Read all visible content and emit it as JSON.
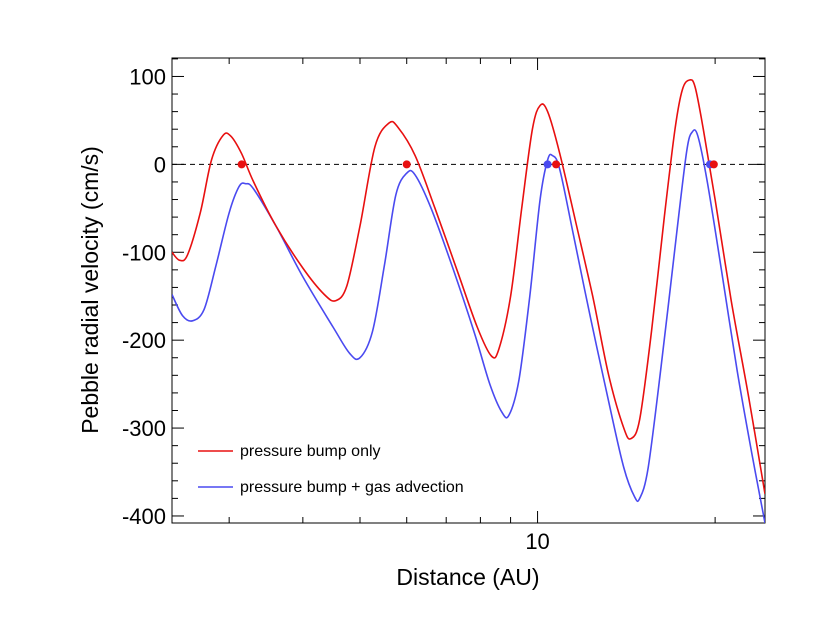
{
  "chart_data": {
    "type": "line",
    "title": "",
    "xlabel": "Distance (AU)",
    "ylabel": "Pebble radial velocity (cm/s)",
    "xscale": "log",
    "xlim": [
      2.4,
      24.3
    ],
    "ylim": [
      -408,
      121
    ],
    "x_tick_labels": [
      {
        "value": 10,
        "label": "10"
      }
    ],
    "x_minor_ticks": [
      3,
      4,
      5,
      6,
      7,
      8,
      9,
      20
    ],
    "y_ticks": [
      -400,
      -300,
      -200,
      -100,
      0,
      100
    ],
    "y_tick_labels": [
      "-400",
      "-300",
      "-200",
      "-100",
      "0",
      "100"
    ],
    "grid": false,
    "zero_line": {
      "y": 0,
      "style": "dashed",
      "color": "#000000"
    },
    "legend": {
      "position": "bottom-left"
    },
    "series": [
      {
        "name": "pressure bump only",
        "color": "#e81010",
        "points": [
          [
            2.4,
            -100
          ],
          [
            2.47,
            -109
          ],
          [
            2.55,
            -103
          ],
          [
            2.68,
            -55
          ],
          [
            2.8,
            5
          ],
          [
            2.93,
            33
          ],
          [
            3.02,
            32
          ],
          [
            3.15,
            12
          ],
          [
            3.3,
            -20
          ],
          [
            3.6,
            -70
          ],
          [
            4.0,
            -118
          ],
          [
            4.35,
            -148
          ],
          [
            4.55,
            -155
          ],
          [
            4.75,
            -138
          ],
          [
            5.0,
            -70
          ],
          [
            5.3,
            20
          ],
          [
            5.6,
            47
          ],
          [
            5.8,
            42
          ],
          [
            6.2,
            10
          ],
          [
            6.7,
            -50
          ],
          [
            7.3,
            -120
          ],
          [
            7.9,
            -185
          ],
          [
            8.35,
            -218
          ],
          [
            8.6,
            -210
          ],
          [
            9.0,
            -150
          ],
          [
            9.4,
            -50
          ],
          [
            9.8,
            40
          ],
          [
            10.1,
            67
          ],
          [
            10.4,
            60
          ],
          [
            10.9,
            13
          ],
          [
            11.6,
            -65
          ],
          [
            12.4,
            -150
          ],
          [
            13.2,
            -240
          ],
          [
            14.0,
            -300
          ],
          [
            14.4,
            -312
          ],
          [
            14.9,
            -290
          ],
          [
            15.6,
            -190
          ],
          [
            16.4,
            -60
          ],
          [
            17.1,
            40
          ],
          [
            17.6,
            85
          ],
          [
            18.1,
            96
          ],
          [
            18.5,
            88
          ],
          [
            19.1,
            40
          ],
          [
            20.0,
            -40
          ],
          [
            21.3,
            -155
          ],
          [
            22.8,
            -265
          ],
          [
            24.3,
            -375
          ]
        ],
        "markers": [
          [
            3.15,
            0
          ],
          [
            6.0,
            0
          ],
          [
            10.75,
            0
          ],
          [
            19.9,
            0
          ]
        ]
      },
      {
        "name": "pressure bump + gas advection",
        "color": "#4a4af0",
        "points": [
          [
            2.4,
            -148
          ],
          [
            2.5,
            -172
          ],
          [
            2.6,
            -178
          ],
          [
            2.72,
            -165
          ],
          [
            2.85,
            -115
          ],
          [
            3.0,
            -55
          ],
          [
            3.12,
            -25
          ],
          [
            3.2,
            -22
          ],
          [
            3.3,
            -28
          ],
          [
            3.6,
            -70
          ],
          [
            4.0,
            -128
          ],
          [
            4.5,
            -185
          ],
          [
            4.8,
            -215
          ],
          [
            5.0,
            -220
          ],
          [
            5.25,
            -190
          ],
          [
            5.5,
            -115
          ],
          [
            5.75,
            -35
          ],
          [
            6.0,
            -10
          ],
          [
            6.2,
            -12
          ],
          [
            6.6,
            -50
          ],
          [
            7.2,
            -120
          ],
          [
            7.8,
            -190
          ],
          [
            8.3,
            -250
          ],
          [
            8.7,
            -282
          ],
          [
            8.95,
            -285
          ],
          [
            9.3,
            -245
          ],
          [
            9.7,
            -150
          ],
          [
            10.1,
            -40
          ],
          [
            10.4,
            5
          ],
          [
            10.6,
            10
          ],
          [
            10.9,
            -5
          ],
          [
            11.5,
            -80
          ],
          [
            12.3,
            -175
          ],
          [
            13.2,
            -270
          ],
          [
            14.0,
            -345
          ],
          [
            14.6,
            -378
          ],
          [
            14.9,
            -380
          ],
          [
            15.4,
            -345
          ],
          [
            16.2,
            -230
          ],
          [
            17.2,
            -80
          ],
          [
            17.9,
            15
          ],
          [
            18.3,
            37
          ],
          [
            18.7,
            32
          ],
          [
            19.4,
            -20
          ],
          [
            20.5,
            -120
          ],
          [
            21.8,
            -235
          ],
          [
            23.1,
            -330
          ],
          [
            24.3,
            -408
          ]
        ],
        "markers": [
          [
            10.4,
            0
          ],
          [
            19.6,
            0
          ]
        ]
      }
    ]
  }
}
